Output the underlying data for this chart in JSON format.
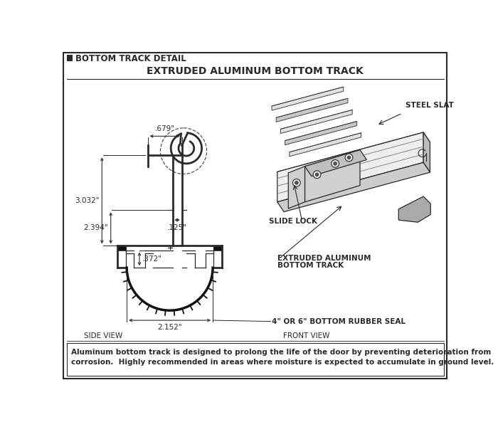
{
  "title": "EXTRUDED ALUMINUM BOTTOM TRACK",
  "header": "BOTTOM TRACK DETAIL",
  "footer_line1": "Aluminum bottom track is designed to prolong the life of the door by preventing deterioration from",
  "footer_line2": "corrosion.  Highly recommended in areas where moisture is expected to accumulate in ground level.",
  "side_view_label": "SIDE VIEW",
  "front_view_label": "FRONT VIEW",
  "dims": {
    "679": ".679\"",
    "3032": "3.032\"",
    "2394": "2.394\"",
    "125": ".125\"",
    "372": ".372\"",
    "2152": "2.152\""
  },
  "labels": {
    "steel_slat": "STEEL SLAT",
    "slide_lock": "SLIDE LOCK",
    "ext_alum_line1": "EXTRUDED ALUMINUM",
    "ext_alum_line2": "BOTTOM TRACK",
    "rubber_seal": "4\" OR 6\" BOTTOM RUBBER SEAL"
  },
  "line_color": "#2a2a2a",
  "thick_line": 2.0,
  "thin_line": 0.9,
  "dim_line": 0.7
}
